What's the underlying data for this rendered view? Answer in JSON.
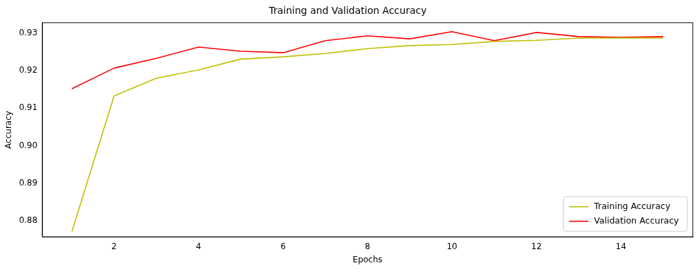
{
  "chart_data": {
    "type": "line",
    "title": "Training and Validation Accuracy",
    "xlabel": "Epochs",
    "ylabel": "Accuracy",
    "x": [
      1,
      2,
      3,
      4,
      5,
      6,
      7,
      8,
      9,
      10,
      11,
      12,
      13,
      14,
      15
    ],
    "series": [
      {
        "name": "Training Accuracy",
        "color": "#bfbf00",
        "values": [
          0.8771,
          0.9133,
          0.918,
          0.9202,
          0.9231,
          0.9237,
          0.9246,
          0.9259,
          0.9267,
          0.927,
          0.9278,
          0.9281,
          0.9287,
          0.9287,
          0.9287
        ]
      },
      {
        "name": "Validation Accuracy",
        "color": "#ff0000",
        "values": [
          0.9152,
          0.9207,
          0.9233,
          0.9263,
          0.9252,
          0.9248,
          0.928,
          0.9293,
          0.9285,
          0.9304,
          0.928,
          0.9302,
          0.9291,
          0.9289,
          0.9291
        ]
      }
    ],
    "xlim": [
      0.3,
      15.7
    ],
    "xticks": [
      2,
      4,
      6,
      8,
      10,
      12,
      14
    ],
    "ylim": [
      0.8757,
      0.9328
    ],
    "yticks": [
      {
        "value": 0.88,
        "label": "0.88"
      },
      {
        "value": 0.89,
        "label": "0.89"
      },
      {
        "value": 0.9,
        "label": "0.90"
      },
      {
        "value": 0.91,
        "label": "0.91"
      },
      {
        "value": 0.92,
        "label": "0.92"
      },
      {
        "value": 0.93,
        "label": "0.93"
      }
    ],
    "legend": "bottom right",
    "grid": false,
    "marker": "none",
    "line_style": "solid"
  }
}
